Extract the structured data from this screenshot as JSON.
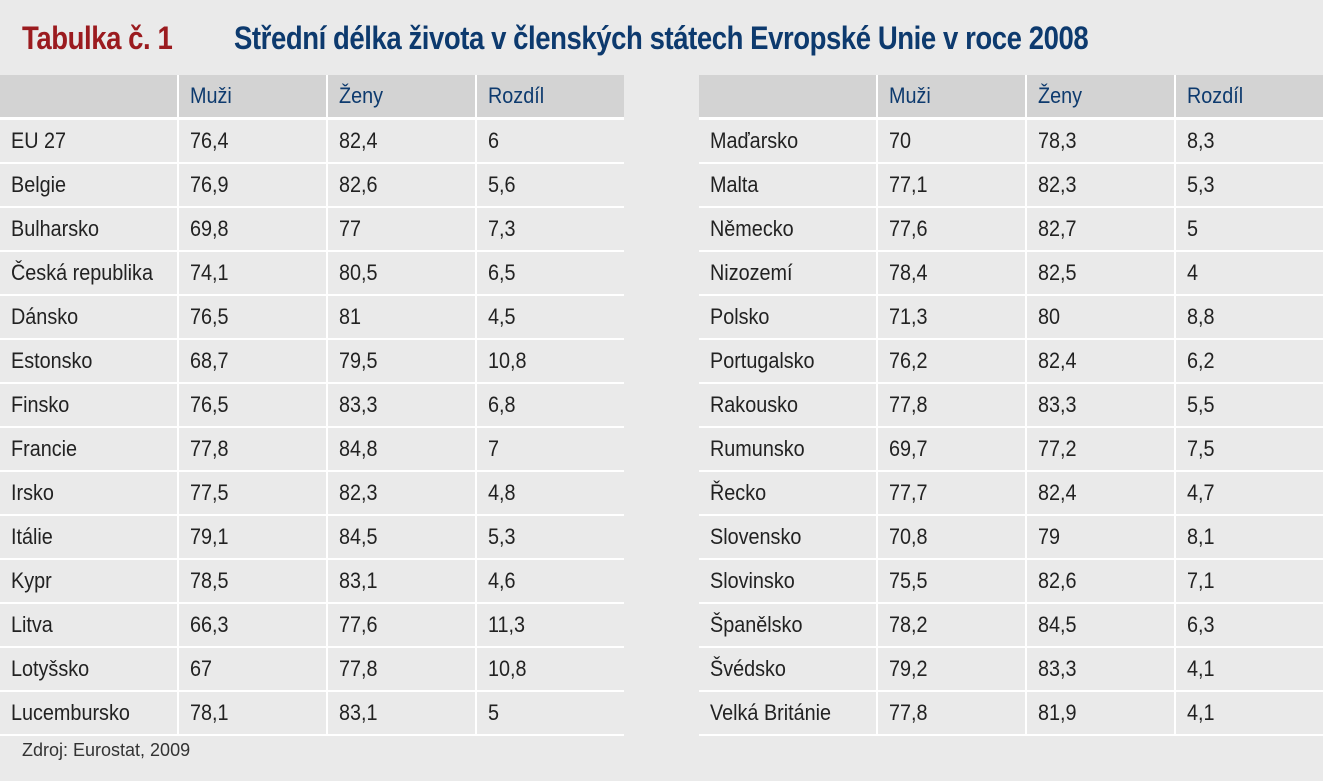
{
  "title": {
    "label": "Tabulka č. 1",
    "text": "Střední délka života v členských státech Evropské Unie v roce 2008"
  },
  "columns": [
    "",
    "Muži",
    "Ženy",
    "Rozdíl"
  ],
  "left_rows": [
    [
      "EU 27",
      "76,4",
      "82,4",
      "6"
    ],
    [
      "Belgie",
      "76,9",
      "82,6",
      "5,6"
    ],
    [
      "Bulharsko",
      "69,8",
      "77",
      "7,3"
    ],
    [
      "Česká republika",
      "74,1",
      "80,5",
      "6,5"
    ],
    [
      "Dánsko",
      "76,5",
      "81",
      "4,5"
    ],
    [
      "Estonsko",
      "68,7",
      "79,5",
      "10,8"
    ],
    [
      "Finsko",
      "76,5",
      "83,3",
      "6,8"
    ],
    [
      "Francie",
      "77,8",
      "84,8",
      "7"
    ],
    [
      "Irsko",
      "77,5",
      "82,3",
      "4,8"
    ],
    [
      "Itálie",
      "79,1",
      "84,5",
      "5,3"
    ],
    [
      "Kypr",
      "78,5",
      "83,1",
      "4,6"
    ],
    [
      "Litva",
      "66,3",
      "77,6",
      "11,3"
    ],
    [
      "Lotyšsko",
      "67",
      "77,8",
      "10,8"
    ],
    [
      "Lucembursko",
      "78,1",
      "83,1",
      "5"
    ]
  ],
  "right_rows": [
    [
      "Maďarsko",
      "70",
      "78,3",
      "8,3"
    ],
    [
      "Malta",
      "77,1",
      "82,3",
      "5,3"
    ],
    [
      "Německo",
      "77,6",
      "82,7",
      "5"
    ],
    [
      "Nizozemí",
      "78,4",
      "82,5",
      "4"
    ],
    [
      "Polsko",
      "71,3",
      "80",
      "8,8"
    ],
    [
      "Portugalsko",
      "76,2",
      "82,4",
      "6,2"
    ],
    [
      "Rakousko",
      "77,8",
      "83,3",
      "5,5"
    ],
    [
      "Rumunsko",
      "69,7",
      "77,2",
      "7,5"
    ],
    [
      "Řecko",
      "77,7",
      "82,4",
      "4,7"
    ],
    [
      "Slovensko",
      "70,8",
      "79",
      "8,1"
    ],
    [
      "Slovinsko",
      "75,5",
      "82,6",
      "7,1"
    ],
    [
      "Španělsko",
      "78,2",
      "84,5",
      "6,3"
    ],
    [
      "Švédsko",
      "79,2",
      "83,3",
      "4,1"
    ],
    [
      "Velká Británie",
      "77,8",
      "81,9",
      "4,1"
    ]
  ],
  "source": "Zdroj: Eurostat, 2009",
  "colors": {
    "label": "#9b1b1f",
    "title": "#0d3a6e",
    "header_bg": "#d3d3d3",
    "background": "#eaeaea"
  }
}
